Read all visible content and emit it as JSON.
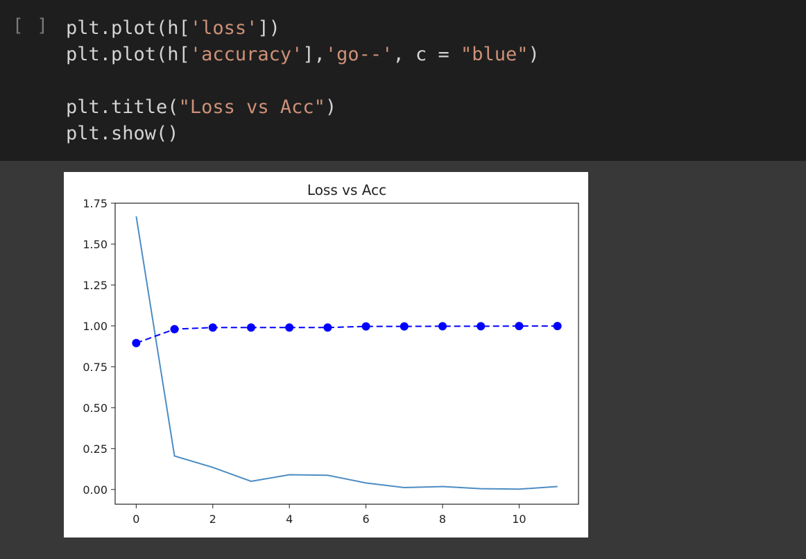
{
  "cell": {
    "run_indicator": "[ ]",
    "code": [
      [
        {
          "t": "plt.plot(h["
        },
        {
          "t": "'loss'",
          "s": 1
        },
        {
          "t": "])"
        }
      ],
      [
        {
          "t": "plt.plot(h["
        },
        {
          "t": "'accuracy'",
          "s": 1
        },
        {
          "t": "],"
        },
        {
          "t": "'go--'",
          "s": 1
        },
        {
          "t": ", c = "
        },
        {
          "t": "\"blue\"",
          "s": 1
        },
        {
          "t": ")"
        }
      ],
      [
        {
          "t": ""
        }
      ],
      [
        {
          "t": "plt.title("
        },
        {
          "t": "\"Loss vs Acc\"",
          "s": 1
        },
        {
          "t": ")"
        }
      ],
      [
        {
          "t": "plt.show()"
        }
      ]
    ]
  },
  "chart_data": {
    "type": "line",
    "title": "Loss vs Acc",
    "xlabel": "",
    "ylabel": "",
    "x": [
      0,
      1,
      2,
      3,
      4,
      5,
      6,
      7,
      8,
      9,
      10,
      11
    ],
    "xlim": [
      -0.55,
      11.55
    ],
    "ylim": [
      -0.09,
      1.75
    ],
    "xticks": [
      0,
      2,
      4,
      6,
      8,
      10
    ],
    "yticks": [
      0.0,
      0.25,
      0.5,
      0.75,
      1.0,
      1.25,
      1.5,
      1.75
    ],
    "ytick_labels": [
      "0.00",
      "0.25",
      "0.50",
      "0.75",
      "1.00",
      "1.25",
      "1.50",
      "1.75"
    ],
    "series": [
      {
        "values": [
          1.67,
          0.205,
          0.135,
          0.05,
          0.09,
          0.087,
          0.04,
          0.012,
          0.018,
          0.005,
          0.002,
          0.018
        ],
        "color": "#4c8cc4",
        "style": "solid"
      },
      {
        "values": [
          0.895,
          0.98,
          0.99,
          0.99,
          0.99,
          0.99,
          0.997,
          0.997,
          0.998,
          0.998,
          0.999,
          0.999
        ],
        "color": "#0000ff",
        "style": "dashed-markers"
      }
    ],
    "grid": false,
    "legend": "none"
  }
}
